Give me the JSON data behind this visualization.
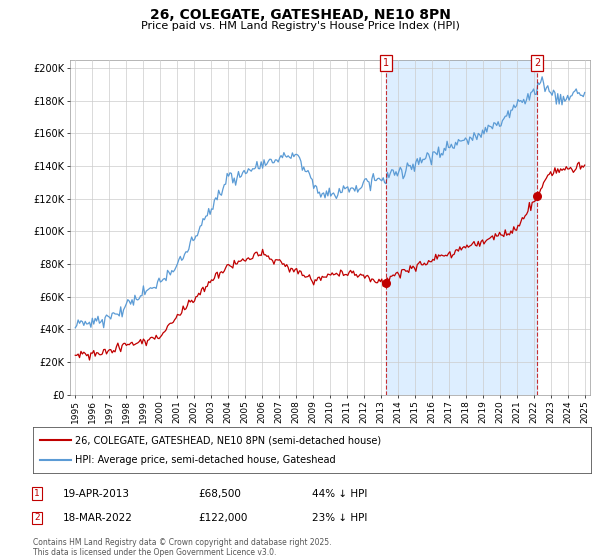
{
  "title": "26, COLEGATE, GATESHEAD, NE10 8PN",
  "subtitle": "Price paid vs. HM Land Registry's House Price Index (HPI)",
  "ylabel_ticks": [
    "£0",
    "£20K",
    "£40K",
    "£60K",
    "£80K",
    "£100K",
    "£120K",
    "£140K",
    "£160K",
    "£180K",
    "£200K"
  ],
  "ylabel_values": [
    0,
    20000,
    40000,
    60000,
    80000,
    100000,
    120000,
    140000,
    160000,
    180000,
    200000
  ],
  "ylim": [
    0,
    205000
  ],
  "xlabel_years": [
    1995,
    1996,
    1997,
    1998,
    1999,
    2000,
    2001,
    2002,
    2003,
    2004,
    2005,
    2006,
    2007,
    2008,
    2009,
    2010,
    2011,
    2012,
    2013,
    2014,
    2015,
    2016,
    2017,
    2018,
    2019,
    2020,
    2021,
    2022,
    2023,
    2024,
    2025
  ],
  "hpi_color": "#5b9bd5",
  "price_color": "#c00000",
  "shade_color": "#ddeeff",
  "point1_date": "19-APR-2013",
  "point1_price": 68500,
  "point1_year": 2013.29,
  "point1_hpi_pct": "44% ↓ HPI",
  "point2_date": "18-MAR-2022",
  "point2_price": 122000,
  "point2_year": 2022.21,
  "point2_hpi_pct": "23% ↓ HPI",
  "legend_label1": "26, COLEGATE, GATESHEAD, NE10 8PN (semi-detached house)",
  "legend_label2": "HPI: Average price, semi-detached house, Gateshead",
  "footer": "Contains HM Land Registry data © Crown copyright and database right 2025.\nThis data is licensed under the Open Government Licence v3.0.",
  "background_color": "#ffffff",
  "grid_color": "#cccccc"
}
